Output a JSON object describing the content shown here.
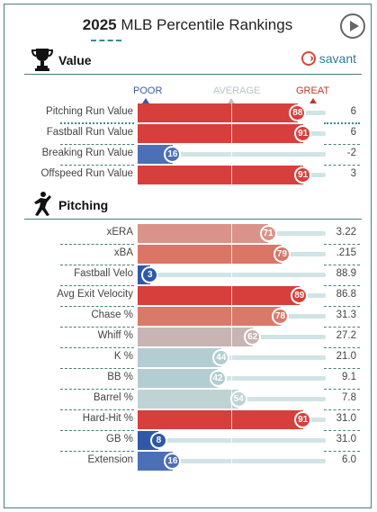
{
  "header": {
    "year": "2025",
    "title_rest": "MLB Percentile Rankings"
  },
  "value_section": {
    "title": "Value",
    "brand": "savant",
    "scale": {
      "poor": "POOR",
      "average": "AVERAGE",
      "great": "GREAT"
    },
    "rows": [
      {
        "label": "Pitching Run Value",
        "percentile": 88,
        "value": "6",
        "color": "#d63f3c"
      },
      {
        "label": "Fastball Run Value",
        "percentile": 91,
        "value": "6",
        "color": "#d63f3c"
      },
      {
        "label": "Breaking Run Value",
        "percentile": 16,
        "value": "-2",
        "color": "#4b70b8"
      },
      {
        "label": "Offspeed Run Value",
        "percentile": 91,
        "value": "3",
        "color": "#d63f3c"
      }
    ]
  },
  "pitching_section": {
    "title": "Pitching",
    "rows": [
      {
        "label": "xERA",
        "percentile": 71,
        "value": "3.22",
        "color": "#d9938a"
      },
      {
        "label": "xBA",
        "percentile": 79,
        "value": ".215",
        "color": "#db7566"
      },
      {
        "label": "Fastball Velo",
        "percentile": 3,
        "value": "88.9",
        "color": "#2f58a8"
      },
      {
        "label": "Avg Exit Velocity",
        "percentile": 89,
        "value": "86.8",
        "color": "#d63f3c"
      },
      {
        "label": "Chase %",
        "percentile": 78,
        "value": "31.3",
        "color": "#d9796a"
      },
      {
        "label": "Whiff %",
        "percentile": 62,
        "value": "27.2",
        "color": "#c7b4b3"
      },
      {
        "label": "K %",
        "percentile": 44,
        "value": "21.0",
        "color": "#b3cdd2"
      },
      {
        "label": "BB %",
        "percentile": 42,
        "value": "9.1",
        "color": "#b3cdd2"
      },
      {
        "label": "Barrel %",
        "percentile": 54,
        "value": "7.8",
        "color": "#bfd3d5"
      },
      {
        "label": "Hard-Hit %",
        "percentile": 91,
        "value": "31.0",
        "color": "#d63f3c"
      },
      {
        "label": "GB %",
        "percentile": 8,
        "value": "31.0",
        "color": "#2f58a8"
      },
      {
        "label": "Extension",
        "percentile": 16,
        "value": "6.0",
        "color": "#4b70b8"
      }
    ]
  }
}
